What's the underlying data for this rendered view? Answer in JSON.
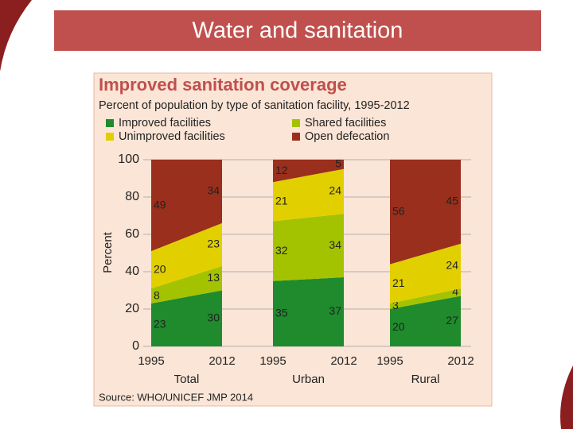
{
  "slide_title": "Water and sanitation",
  "chart_data": {
    "type": "stacked-area",
    "title": "Improved sanitation coverage",
    "subtitle": "Percent of population by type of sanitation facility, 1995-2012",
    "source": "Source:  WHO/UNICEF JMP 2014",
    "y_label": "Percent",
    "panels": [
      "Total",
      "Urban",
      "Rural"
    ],
    "x": [
      "1995",
      "2012"
    ],
    "ylim": [
      0,
      100
    ],
    "yticks": [
      0,
      20,
      40,
      60,
      80,
      100
    ],
    "grid": true,
    "series": [
      {
        "name": "Improved facilities",
        "color": "#1f8b2c",
        "values": [
          [
            23,
            30
          ],
          [
            35,
            37
          ],
          [
            20,
            27
          ]
        ]
      },
      {
        "name": "Shared facilities",
        "color": "#a3c300",
        "values": [
          [
            8,
            13
          ],
          [
            32,
            34
          ],
          [
            3,
            4
          ]
        ]
      },
      {
        "name": "Unimproved facilities",
        "color": "#e2cf00",
        "values": [
          [
            20,
            23
          ],
          [
            21,
            24
          ],
          [
            21,
            24
          ]
        ]
      },
      {
        "name": "Open defecation",
        "color": "#9a2f1d",
        "values": [
          [
            49,
            34
          ],
          [
            12,
            5
          ],
          [
            56,
            45
          ]
        ]
      }
    ]
  }
}
